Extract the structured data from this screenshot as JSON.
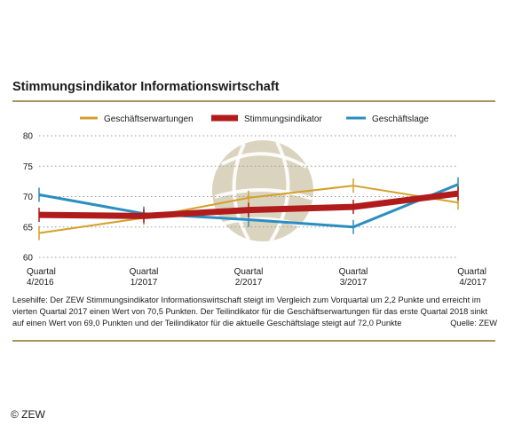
{
  "title": "Stimmungsindikator Informationswirtschaft",
  "caption": "Lesehilfe: Der ZEW Stimmungsindikator Informationswirtschaft steigt im Vergleich zum Vorquartal um 2,2 Punkte und erreicht im vierten Quartal 2017 einen Wert von 70,5 Punkten. Der Teilindikator für die Geschäftserwartungen für das erste Quartal 2018 sinkt auf einen Wert von 69,0 Punkten und der Teilindikator für die aktuelle Geschäftslage steigt auf 72,0 Punkte",
  "source": "Quelle: ZEW",
  "copyright": "© ZEW",
  "colors": {
    "expectations": "#d4a02a",
    "indicator": "#b01c1c",
    "situation": "#2a8ec0",
    "rule": "#a8955a",
    "grid": "#9a9a9a",
    "watermark": "#d3cdb4"
  },
  "chart_data": {
    "type": "line",
    "categories": [
      "Quartal 4/2016",
      "Quartal 1/2017",
      "Quartal 2/2017",
      "Quartal 3/2017",
      "Quartal 4/2017"
    ],
    "category_lines": [
      [
        "Quartal",
        "4/2016"
      ],
      [
        "Quartal",
        "1/2017"
      ],
      [
        "Quartal",
        "2/2017"
      ],
      [
        "Quartal",
        "3/2017"
      ],
      [
        "Quartal",
        "4/2017"
      ]
    ],
    "ylim": [
      60,
      80
    ],
    "yticks": [
      60,
      65,
      70,
      75,
      80
    ],
    "grid": "horizontal dotted",
    "legend_position": "top",
    "series": [
      {
        "name": "Geschäftserwartungen",
        "color": "#d4a02a",
        "values": [
          64.0,
          66.5,
          69.8,
          71.8,
          69.0
        ]
      },
      {
        "name": "Stimmungsindikator",
        "color": "#b01c1c",
        "values": [
          67.0,
          66.8,
          67.8,
          68.3,
          70.5
        ]
      },
      {
        "name": "Geschäftslage",
        "color": "#2a8ec0",
        "values": [
          70.3,
          67.2,
          66.2,
          65.0,
          72.0
        ]
      }
    ]
  }
}
